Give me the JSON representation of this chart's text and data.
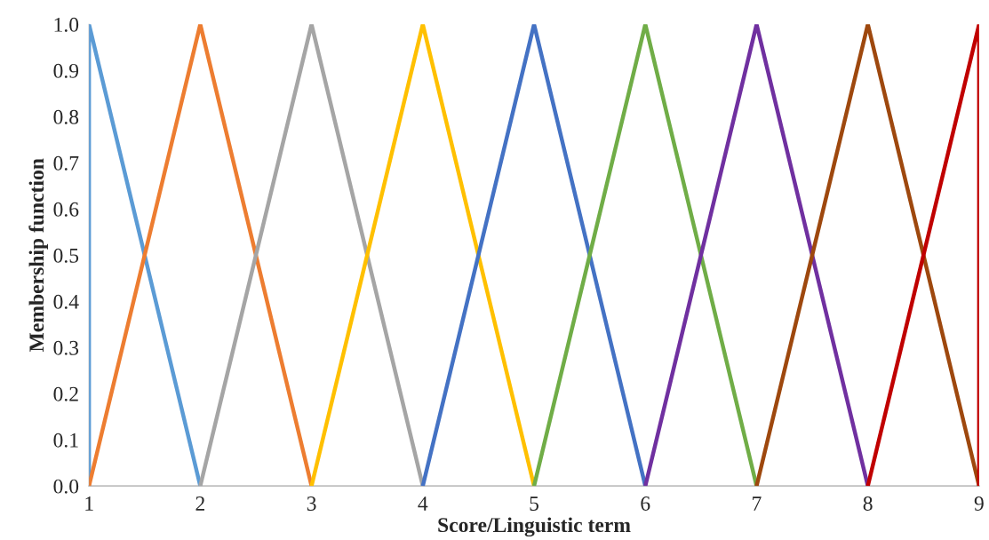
{
  "chart_data": {
    "type": "line",
    "xlabel": "Score/Linguistic term",
    "ylabel": "Membership function",
    "xlim": [
      1,
      9
    ],
    "xticks": [
      1,
      2,
      3,
      4,
      5,
      6,
      7,
      8,
      9
    ],
    "ylim": [
      0,
      1
    ],
    "yticks": [
      {
        "value": 0,
        "label": "0.0"
      },
      {
        "value": 0.1,
        "label": "0.1"
      },
      {
        "value": 0.2,
        "label": "0.2"
      },
      {
        "value": 0.3,
        "label": "0.3"
      },
      {
        "value": 0.4,
        "label": "0.4"
      },
      {
        "value": 0.5,
        "label": "0.5"
      },
      {
        "value": 0.6,
        "label": "0.6"
      },
      {
        "value": 0.7,
        "label": "0.7"
      },
      {
        "value": 0.8,
        "label": "0.8"
      },
      {
        "value": 0.9,
        "label": "0.9"
      },
      {
        "value": 1,
        "label": "1.0"
      }
    ],
    "grid": false,
    "marker": "none",
    "line_style": "solid",
    "series": [
      {
        "color": "#5b9bd5",
        "x": [
          1,
          1,
          2
        ],
        "values": [
          0,
          1,
          0
        ]
      },
      {
        "color": "#ed7d31",
        "x": [
          1,
          2,
          3
        ],
        "values": [
          0,
          1,
          0
        ]
      },
      {
        "color": "#a5a5a5",
        "x": [
          2,
          3,
          4
        ],
        "values": [
          0,
          1,
          0
        ]
      },
      {
        "color": "#ffc000",
        "x": [
          3,
          4,
          5
        ],
        "values": [
          0,
          1,
          0
        ]
      },
      {
        "color": "#4472c4",
        "x": [
          4,
          5,
          6
        ],
        "values": [
          0,
          1,
          0
        ]
      },
      {
        "color": "#70ad47",
        "x": [
          5,
          6,
          7
        ],
        "values": [
          0,
          1,
          0
        ]
      },
      {
        "color": "#7030a0",
        "x": [
          6,
          7,
          8
        ],
        "values": [
          0,
          1,
          0
        ]
      },
      {
        "color": "#9e480e",
        "x": [
          7,
          8,
          9
        ],
        "values": [
          0,
          1,
          0
        ]
      },
      {
        "color": "#c00000",
        "x": [
          8,
          9,
          9
        ],
        "values": [
          0,
          1,
          0
        ]
      }
    ]
  }
}
